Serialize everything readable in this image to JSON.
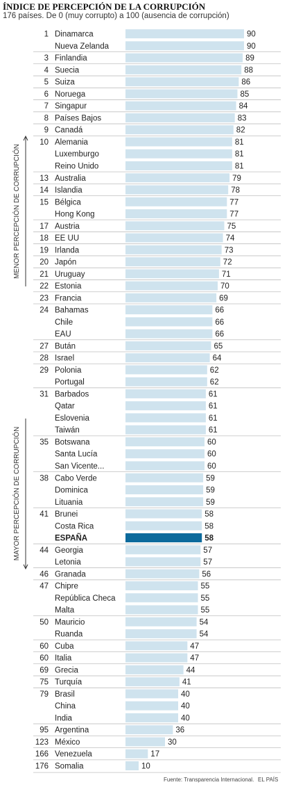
{
  "header": {
    "title": "ÍNDICE DE PERCEPCIÓN DE LA CORRUPCIÓN",
    "subtitle": "176 países. De 0 (muy corrupto) a 100 (ausencia de corrupción)"
  },
  "footer": {
    "source": "Fuente: Transparencia Internacional.",
    "brand": "EL PAÍS"
  },
  "colors": {
    "bar": "#cfe3ee",
    "highlight": "#0c6a9c",
    "text": "#222222",
    "rule": "#bfbfbf"
  },
  "chart_data": {
    "type": "bar",
    "orientation": "horizontal",
    "xlim": [
      0,
      100
    ],
    "side_labels": [
      {
        "text": "MENOR PERCEPCIÓN DE CORRUPCIÓN",
        "arrow": "up"
      },
      {
        "text": "MAYOR PERCEPCIÓN DE CORRUPCIÓN",
        "arrow": "down"
      }
    ],
    "highlight": "ESPAÑA",
    "rows": [
      {
        "rank": "1",
        "country": "Dinamarca",
        "value": 90
      },
      {
        "rank": "",
        "country": "Nueva Zelanda",
        "value": 90
      },
      {
        "rank": "3",
        "country": "Finlandia",
        "value": 89
      },
      {
        "rank": "4",
        "country": "Suecia",
        "value": 88
      },
      {
        "rank": "5",
        "country": "Suiza",
        "value": 86
      },
      {
        "rank": "6",
        "country": "Noruega",
        "value": 85
      },
      {
        "rank": "7",
        "country": "Singapur",
        "value": 84
      },
      {
        "rank": "8",
        "country": "Países Bajos",
        "value": 83
      },
      {
        "rank": "9",
        "country": "Canadá",
        "value": 82
      },
      {
        "rank": "10",
        "country": "Alemania",
        "value": 81
      },
      {
        "rank": "",
        "country": "Luxemburgo",
        "value": 81
      },
      {
        "rank": "",
        "country": "Reino Unido",
        "value": 81
      },
      {
        "rank": "13",
        "country": "Australia",
        "value": 79
      },
      {
        "rank": "14",
        "country": "Islandia",
        "value": 78
      },
      {
        "rank": "15",
        "country": "Bélgica",
        "value": 77
      },
      {
        "rank": "",
        "country": "Hong Kong",
        "value": 77
      },
      {
        "rank": "17",
        "country": "Austria",
        "value": 75
      },
      {
        "rank": "18",
        "country": "EE UU",
        "value": 74
      },
      {
        "rank": "19",
        "country": "Irlanda",
        "value": 73
      },
      {
        "rank": "20",
        "country": "Japón",
        "value": 72
      },
      {
        "rank": "21",
        "country": "Uruguay",
        "value": 71
      },
      {
        "rank": "22",
        "country": "Estonia",
        "value": 70
      },
      {
        "rank": "23",
        "country": "Francia",
        "value": 69
      },
      {
        "rank": "24",
        "country": "Bahamas",
        "value": 66
      },
      {
        "rank": "",
        "country": "Chile",
        "value": 66
      },
      {
        "rank": "",
        "country": "EAU",
        "value": 66
      },
      {
        "rank": "27",
        "country": "Bután",
        "value": 65
      },
      {
        "rank": "28",
        "country": "Israel",
        "value": 64
      },
      {
        "rank": "29",
        "country": "Polonia",
        "value": 62
      },
      {
        "rank": "",
        "country": "Portugal",
        "value": 62
      },
      {
        "rank": "31",
        "country": "Barbados",
        "value": 61
      },
      {
        "rank": "",
        "country": "Qatar",
        "value": 61
      },
      {
        "rank": "",
        "country": "Eslovenia",
        "value": 61
      },
      {
        "rank": "",
        "country": "Taiwán",
        "value": 61
      },
      {
        "rank": "35",
        "country": "Botswana",
        "value": 60
      },
      {
        "rank": "",
        "country": "Santa Lucía",
        "value": 60
      },
      {
        "rank": "",
        "country": "San Vicente...",
        "value": 60
      },
      {
        "rank": "38",
        "country": "Cabo Verde",
        "value": 59
      },
      {
        "rank": "",
        "country": "Dominica",
        "value": 59
      },
      {
        "rank": "",
        "country": "Lituania",
        "value": 59
      },
      {
        "rank": "41",
        "country": "Brunei",
        "value": 58
      },
      {
        "rank": "",
        "country": "Costa Rica",
        "value": 58
      },
      {
        "rank": "",
        "country": "ESPAÑA",
        "value": 58
      },
      {
        "rank": "44",
        "country": "Georgia",
        "value": 57
      },
      {
        "rank": "",
        "country": "Letonia",
        "value": 57
      },
      {
        "rank": "46",
        "country": "Granada",
        "value": 56
      },
      {
        "rank": "47",
        "country": "Chipre",
        "value": 55
      },
      {
        "rank": "",
        "country": "República Checa",
        "value": 55
      },
      {
        "rank": "",
        "country": "Malta",
        "value": 55
      },
      {
        "rank": "50",
        "country": "Mauricio",
        "value": 54
      },
      {
        "rank": "",
        "country": "Ruanda",
        "value": 54
      },
      {
        "rank": "60",
        "country": "Cuba",
        "value": 47
      },
      {
        "rank": "60",
        "country": "Italia",
        "value": 47
      },
      {
        "rank": "69",
        "country": "Grecia",
        "value": 44
      },
      {
        "rank": "75",
        "country": "Turquía",
        "value": 41
      },
      {
        "rank": "79",
        "country": "Brasil",
        "value": 40
      },
      {
        "rank": "",
        "country": "China",
        "value": 40
      },
      {
        "rank": "",
        "country": "India",
        "value": 40
      },
      {
        "rank": "95",
        "country": "Argentina",
        "value": 36
      },
      {
        "rank": "123",
        "country": "México",
        "value": 30
      },
      {
        "rank": "166",
        "country": "Venezuela",
        "value": 17
      },
      {
        "rank": "176",
        "country": "Somalia",
        "value": 10
      }
    ]
  }
}
